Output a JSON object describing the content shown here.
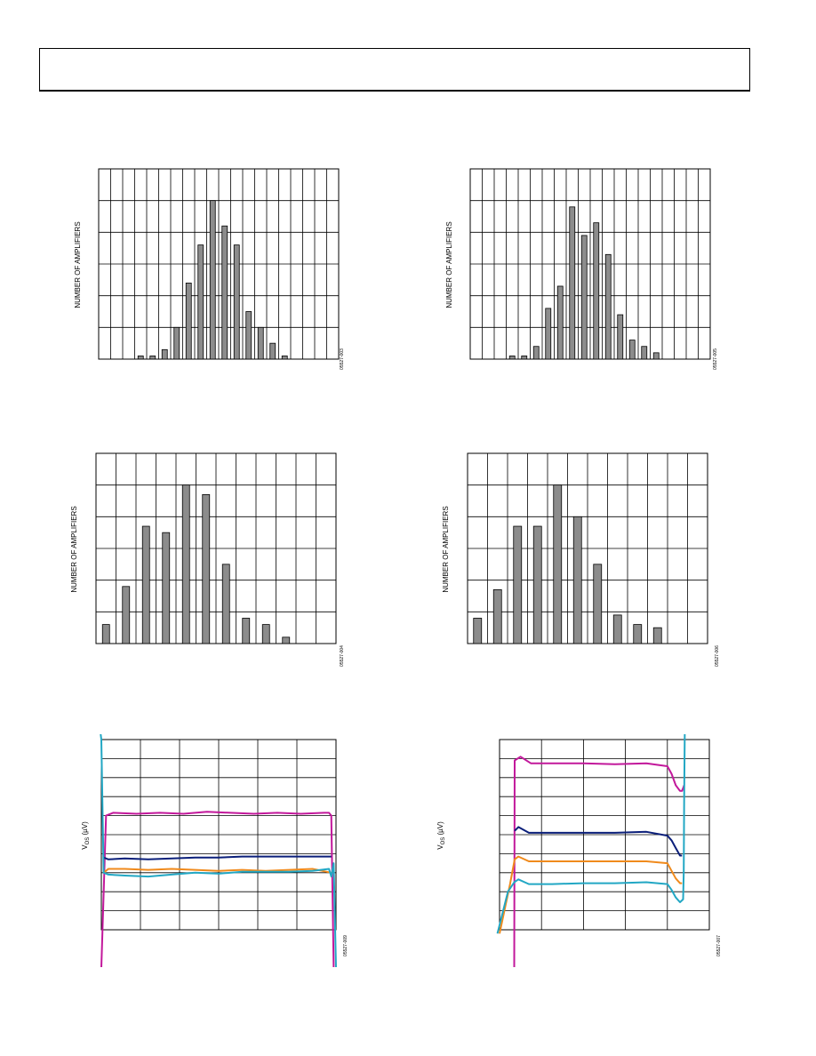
{
  "chart_data": [
    {
      "type": "bar",
      "ylabel": "NUMBER OF AMPLIFIERS",
      "figure_id": "05527-003",
      "ylim": [
        0,
        60
      ],
      "grid": true,
      "series": [
        {
          "values": [
            1,
            1,
            3,
            10,
            24,
            36,
            50,
            42,
            36,
            15,
            10,
            5,
            1
          ]
        }
      ]
    },
    {
      "type": "bar",
      "ylabel": "NUMBER OF AMPLIFIERS",
      "figure_id": "05527-005",
      "ylim": [
        0,
        60
      ],
      "grid": true,
      "series": [
        {
          "values": [
            1,
            1,
            4,
            16,
            23,
            48,
            39,
            43,
            33,
            14,
            6,
            4,
            2
          ]
        }
      ]
    },
    {
      "type": "bar",
      "ylabel": "NUMBER OF AMPLIFIERS",
      "figure_id": "05527-004",
      "ylim": [
        0,
        60
      ],
      "grid": true,
      "series": [
        {
          "values": [
            6,
            18,
            37,
            35,
            50,
            47,
            25,
            8,
            6,
            2
          ]
        }
      ]
    },
    {
      "type": "bar",
      "ylabel": "NUMBER OF AMPLIFIERS",
      "figure_id": "05527-006",
      "ylim": [
        0,
        60
      ],
      "grid": true,
      "series": [
        {
          "values": [
            8,
            17,
            37,
            37,
            50,
            40,
            25,
            9,
            6,
            5
          ]
        }
      ]
    },
    {
      "type": "line",
      "ylabel": "V_OS (µV)",
      "figure_id": "05527-009",
      "xlim": [
        0,
        100
      ],
      "ylim": [
        0,
        10
      ],
      "grid": true,
      "series": [
        {
          "color": "#c2189b",
          "x": [
            0,
            2,
            5,
            15,
            25,
            35,
            45,
            55,
            65,
            75,
            85,
            95,
            97,
            98,
            99
          ],
          "y": [
            -2,
            6.0,
            6.15,
            6.1,
            6.15,
            6.1,
            6.2,
            6.15,
            6.1,
            6.15,
            6.1,
            6.15,
            6.15,
            6.0,
            -2
          ]
        },
        {
          "color": "#0b1f7a",
          "x": [
            1,
            3,
            10,
            20,
            30,
            40,
            50,
            60,
            70,
            80,
            90,
            98
          ],
          "y": [
            3.8,
            3.7,
            3.75,
            3.7,
            3.75,
            3.8,
            3.8,
            3.85,
            3.85,
            3.85,
            3.85,
            3.85
          ]
        },
        {
          "color": "#f08a1c",
          "x": [
            1,
            3,
            10,
            20,
            30,
            40,
            50,
            60,
            70,
            80,
            90,
            98
          ],
          "y": [
            3.0,
            3.2,
            3.2,
            3.15,
            3.2,
            3.15,
            3.1,
            3.15,
            3.1,
            3.15,
            3.2,
            3.0
          ]
        },
        {
          "color": "#22a7c4",
          "x": [
            -1,
            0,
            1,
            3,
            10,
            20,
            30,
            40,
            50,
            60,
            70,
            80,
            90,
            97,
            98,
            99,
            100
          ],
          "y": [
            11,
            10,
            3.0,
            2.9,
            2.85,
            2.8,
            2.9,
            3.0,
            2.95,
            3.05,
            3.05,
            3.05,
            3.1,
            3.2,
            2.8,
            3.5,
            -2
          ]
        }
      ]
    },
    {
      "type": "line",
      "ylabel": "V_OS (µV)",
      "figure_id": "05527-007",
      "xlim": [
        0,
        100
      ],
      "ylim": [
        0,
        10
      ],
      "grid": true,
      "series": [
        {
          "color": "#c2189b",
          "x": [
            7,
            7.2,
            10,
            15,
            25,
            40,
            55,
            70,
            80,
            82,
            84,
            86,
            87,
            88
          ],
          "y": [
            -2,
            8.9,
            9.1,
            8.75,
            8.75,
            8.75,
            8.7,
            8.75,
            8.6,
            8.2,
            7.6,
            7.3,
            7.3,
            7.6
          ]
        },
        {
          "color": "#0b1f7a",
          "x": [
            7.2,
            9,
            14,
            25,
            40,
            55,
            70,
            80,
            82,
            84,
            86,
            87
          ],
          "y": [
            5.2,
            5.4,
            5.1,
            5.1,
            5.1,
            5.1,
            5.15,
            4.95,
            4.7,
            4.3,
            3.9,
            3.9
          ]
        },
        {
          "color": "#f08a1c",
          "x": [
            0,
            5,
            7.2,
            9,
            14,
            25,
            40,
            55,
            70,
            80,
            82,
            84,
            86,
            87
          ],
          "y": [
            -0.2,
            2.4,
            3.7,
            3.85,
            3.6,
            3.6,
            3.6,
            3.6,
            3.6,
            3.5,
            3.1,
            2.7,
            2.45,
            2.45
          ]
        },
        {
          "color": "#22a7c4",
          "x": [
            -1,
            4,
            7,
            9,
            14,
            25,
            40,
            55,
            70,
            80,
            82,
            84,
            86,
            87.5,
            87.8,
            88,
            88.3
          ],
          "y": [
            -0.2,
            2.0,
            2.5,
            2.65,
            2.4,
            2.4,
            2.45,
            2.45,
            2.5,
            2.4,
            2.1,
            1.7,
            1.45,
            1.6,
            3.0,
            7.0,
            10.5
          ]
        }
      ]
    }
  ]
}
